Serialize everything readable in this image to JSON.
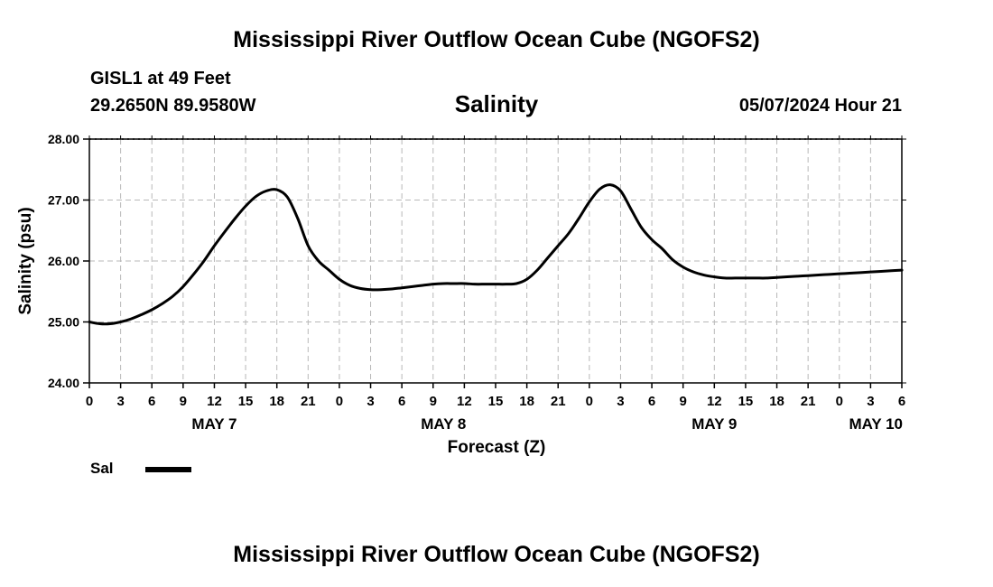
{
  "page": {
    "title": "Mississippi River Outflow Ocean Cube (NGOFS2)",
    "footer_title": "Mississippi River Outflow Ocean Cube (NGOFS2)"
  },
  "header": {
    "station": "GISL1 at 49 Feet",
    "coordinates": "29.2650N  89.9580W",
    "chart_title": "Salinity",
    "datetime": "05/07/2024 Hour 21"
  },
  "legend": {
    "label": "Sal",
    "color": "#000000"
  },
  "chart_data": {
    "type": "line",
    "title": "Salinity",
    "xlabel": "Forecast (Z)",
    "ylabel": "Salinity (psu)",
    "ylim": [
      24.0,
      28.0
    ],
    "xlim": [
      0,
      78
    ],
    "x_unit": "hours from May 7 00Z",
    "yticks": [
      "24.00",
      "25.00",
      "26.00",
      "27.00",
      "28.00"
    ],
    "xticks": [
      "0",
      "3",
      "6",
      "9",
      "12",
      "15",
      "18",
      "21",
      "0",
      "3",
      "6",
      "9",
      "12",
      "15",
      "18",
      "21",
      "0",
      "3",
      "6",
      "9",
      "12",
      "15",
      "18",
      "21",
      "0",
      "3",
      "6"
    ],
    "day_labels": [
      {
        "label": "MAY 7",
        "x": 12
      },
      {
        "label": "MAY 8",
        "x": 34
      },
      {
        "label": "MAY 9",
        "x": 60
      },
      {
        "label": "MAY 10",
        "x": 72
      }
    ],
    "grid": true,
    "legend_position": "bottom-left",
    "series": [
      {
        "name": "Sal",
        "color": "#000000",
        "x": [
          0,
          1,
          2,
          3,
          4,
          5,
          6,
          7,
          8,
          9,
          10,
          11,
          12,
          13,
          14,
          15,
          16,
          17,
          18,
          19,
          20,
          21,
          22,
          23,
          24,
          25,
          26,
          27,
          28,
          29,
          30,
          31,
          32,
          33,
          34,
          35,
          36,
          37,
          38,
          39,
          40,
          41,
          42,
          43,
          44,
          45,
          46,
          47,
          48,
          49,
          50,
          51,
          52,
          53,
          54,
          55,
          56,
          57,
          58,
          59,
          60,
          61,
          62,
          63,
          64,
          65,
          66,
          67,
          68,
          69,
          70,
          71,
          72,
          73,
          74,
          75,
          76,
          77,
          78
        ],
        "y": [
          25.0,
          24.97,
          24.97,
          25.0,
          25.05,
          25.12,
          25.2,
          25.3,
          25.42,
          25.58,
          25.78,
          26.0,
          26.25,
          26.48,
          26.7,
          26.9,
          27.06,
          27.15,
          27.17,
          27.05,
          26.7,
          26.25,
          26.0,
          25.85,
          25.7,
          25.6,
          25.55,
          25.53,
          25.53,
          25.54,
          25.56,
          25.58,
          25.6,
          25.62,
          25.63,
          25.63,
          25.63,
          25.62,
          25.62,
          25.62,
          25.62,
          25.63,
          25.7,
          25.85,
          26.05,
          26.25,
          26.45,
          26.7,
          26.97,
          27.18,
          27.25,
          27.15,
          26.85,
          26.55,
          26.35,
          26.2,
          26.02,
          25.9,
          25.82,
          25.77,
          25.74,
          25.72,
          25.72,
          25.72,
          25.72,
          25.72,
          25.73,
          25.74,
          25.75,
          25.76,
          25.77,
          25.78,
          25.79,
          25.8,
          25.81,
          25.82,
          25.83,
          25.84,
          25.85
        ]
      }
    ]
  }
}
